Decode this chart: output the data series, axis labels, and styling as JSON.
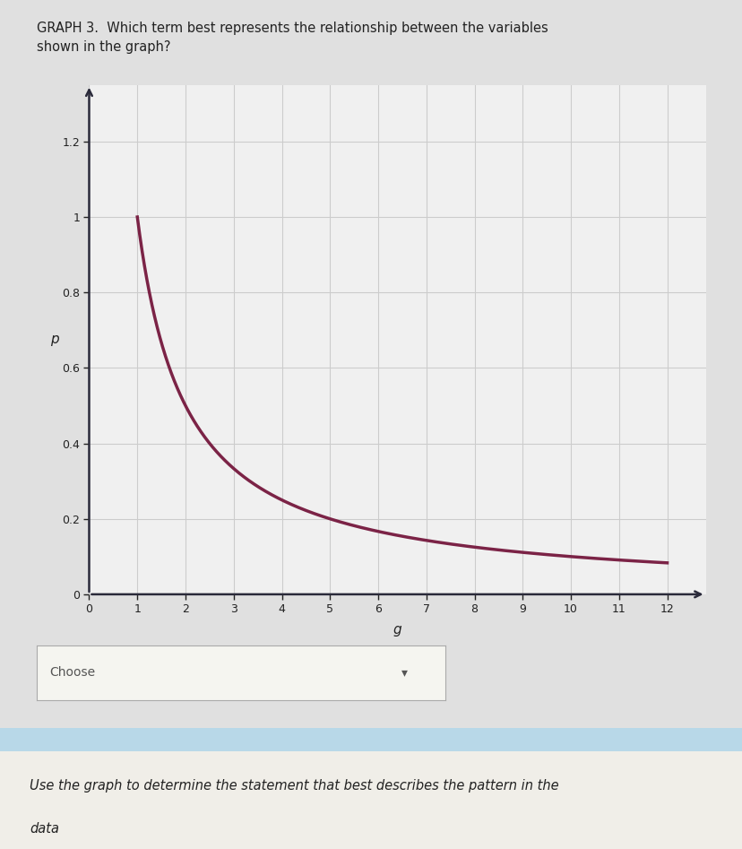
{
  "title_line1": "GRAPH 3.  Which term best represents the relationship between the variables",
  "title_line2": "shown in the graph?",
  "xlabel": "g",
  "ylabel": "p",
  "xlim": [
    0,
    12.8
  ],
  "ylim": [
    0,
    1.35
  ],
  "xticks": [
    0,
    1,
    2,
    3,
    4,
    5,
    6,
    7,
    8,
    9,
    10,
    11,
    12
  ],
  "yticks": [
    0,
    0.2,
    0.4,
    0.6,
    0.8,
    1,
    1.2
  ],
  "curve_color": "#7B2346",
  "curve_linewidth": 2.5,
  "page_bg_color": "#E0E0E0",
  "plot_bg_color": "#F0F0F0",
  "grid_color": "#CCCCCC",
  "axis_color": "#2A2A3A",
  "choose_box_text": "Choose",
  "choose_box_bg": "#F5F5F0",
  "footer_band_color": "#B8D8E8",
  "footer_bg_color": "#F0EEE8",
  "footer_text_line1": "Use the graph to determine the statement that best describes the pattern in the",
  "footer_text_line2": "data",
  "curve_x_start": 1.0
}
